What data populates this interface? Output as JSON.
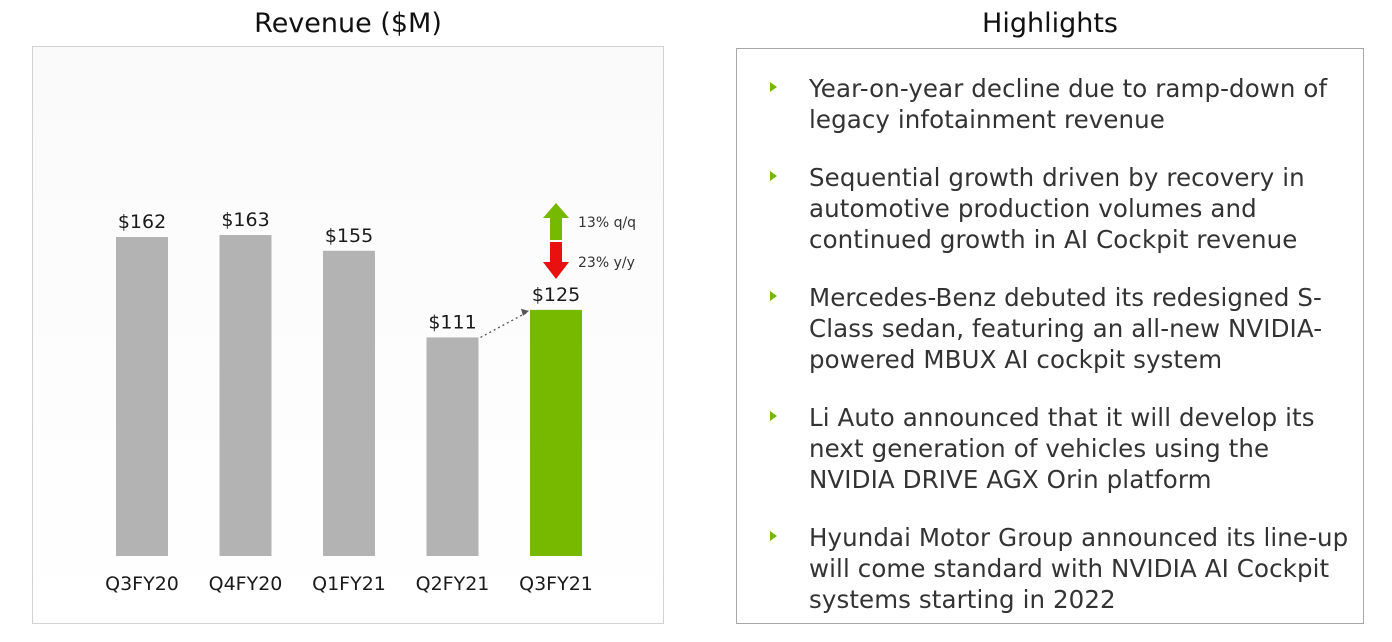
{
  "chart_panel": {
    "title": "Revenue ($M)"
  },
  "highlights": {
    "title": "Highlights",
    "items": [
      "Year-on-year decline due to ramp-down of legacy infotainment revenue",
      "Sequential growth driven by recovery in automotive production volumes and continued growth in AI Cockpit revenue",
      "Mercedes-Benz debuted its redesigned S-Class sedan, featuring an all-new NVIDIA-powered MBUX AI cockpit system",
      "Li Auto announced that it will develop its next generation of vehicles using the NVIDIA DRIVE AGX Orin platform",
      "Hyundai Motor Group announced its line-up will come standard with NVIDIA AI Cockpit systems starting in 2022"
    ]
  },
  "chart_data": {
    "type": "bar",
    "title": "Revenue ($M)",
    "categories": [
      "Q3FY20",
      "Q4FY20",
      "Q1FY21",
      "Q2FY21",
      "Q3FY21"
    ],
    "values": [
      162,
      163,
      155,
      111,
      125
    ],
    "value_labels": [
      "$162",
      "$163",
      "$155",
      "$111",
      "$125"
    ],
    "highlight_index": 4,
    "bar_color": "#b3b3b3",
    "highlight_color": "#76b900",
    "ylim": [
      0,
      165
    ],
    "grid": false,
    "annotations": [
      {
        "label": "13% q/q",
        "direction": "up",
        "color": "#76b900"
      },
      {
        "label": "23% y/y",
        "direction": "down",
        "color": "#e8110f"
      }
    ]
  }
}
